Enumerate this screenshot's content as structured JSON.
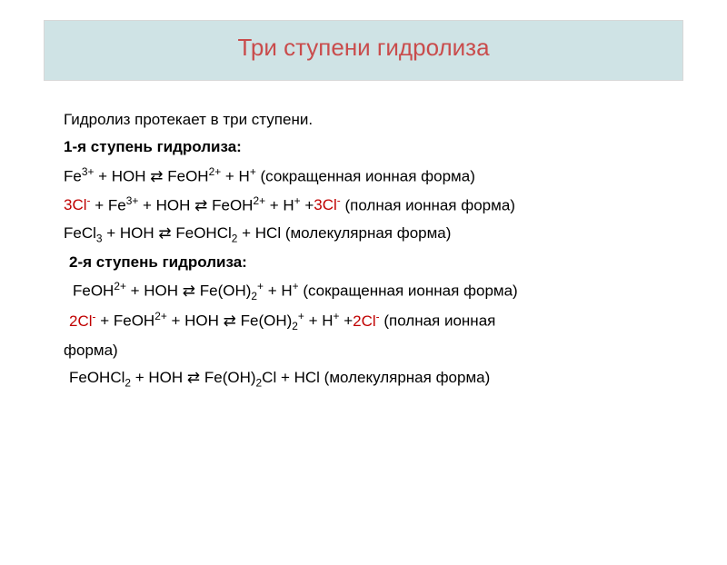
{
  "colors": {
    "title_bg": "#cfe3e5",
    "title_text": "#c94c4c",
    "body_text": "#000000",
    "highlight_red": "#c00000",
    "border": "#d8d8d8",
    "page_bg": "#ffffff"
  },
  "typography": {
    "title_fontsize": 26,
    "body_fontsize": 17,
    "line_height": 1.55,
    "font_family": "Arial"
  },
  "title": "Три ступени гидролиза",
  "intro": "Гидролиз протекает в три ступени.",
  "step1": {
    "heading": "1-я ступень гидролиза:",
    "eq_short_pre": "Fe",
    "eq_short_sup1": "3+",
    "eq_short_mid1": " + HOH ⇄ FeOH",
    "eq_short_sup2": "2+",
    "eq_short_mid2": " + H",
    "eq_short_sup3": "+",
    "eq_short_tail": " (сокращенная ионная форма)",
    "eq_full_a": "3Cl",
    "eq_full_a_sup": "-",
    "eq_full_b": " + Fe",
    "eq_full_b_sup": "3+",
    "eq_full_c": " + HOH ⇄ FeOH",
    "eq_full_c_sup": "2+",
    "eq_full_d": " + H",
    "eq_full_d_sup": "+",
    "eq_full_e": " +",
    "eq_full_f": "3Cl",
    "eq_full_f_sup": "-",
    "eq_full_tail": " (полная ионная форма)",
    "eq_mol_a": "FeCl",
    "eq_mol_a_sub": "3",
    "eq_mol_b": " + HOH ⇄ FeOHCl",
    "eq_mol_b_sub": "2",
    "eq_mol_tail": " + HCl (молекулярная форма)"
  },
  "step2": {
    "heading": "2-я ступень гидролиза:",
    "eq_short_a": "FeOH",
    "eq_short_a_sup": "2+",
    "eq_short_b": " + HOH ⇄ Fe(OH)",
    "eq_short_b_sub": "2",
    "eq_short_b_sup": "+",
    "eq_short_c": " + H",
    "eq_short_c_sup": "+",
    "eq_short_tail": " (сокращенная ионная форма)",
    "eq_full_a": "2Cl",
    "eq_full_a_sup": "-",
    "eq_full_b": " + FeOH",
    "eq_full_b_sup": "2+",
    "eq_full_c": " + HOH ⇄ Fe(OH)",
    "eq_full_c_sub": "2",
    "eq_full_c_sup": "+",
    "eq_full_d": " + H",
    "eq_full_d_sup": "+",
    "eq_full_e": " +",
    "eq_full_f": "2Cl",
    "eq_full_f_sup": "-",
    "eq_full_tail_a": " (полная ионная",
    "eq_full_tail_b": "форма)",
    "eq_mol_a": "FeOHCl",
    "eq_mol_a_sub": "2",
    "eq_mol_b": " + HOH ⇄ Fe(OH)",
    "eq_mol_b_sub": "2",
    "eq_mol_tail": "Cl + HCl (молекулярная форма)"
  }
}
